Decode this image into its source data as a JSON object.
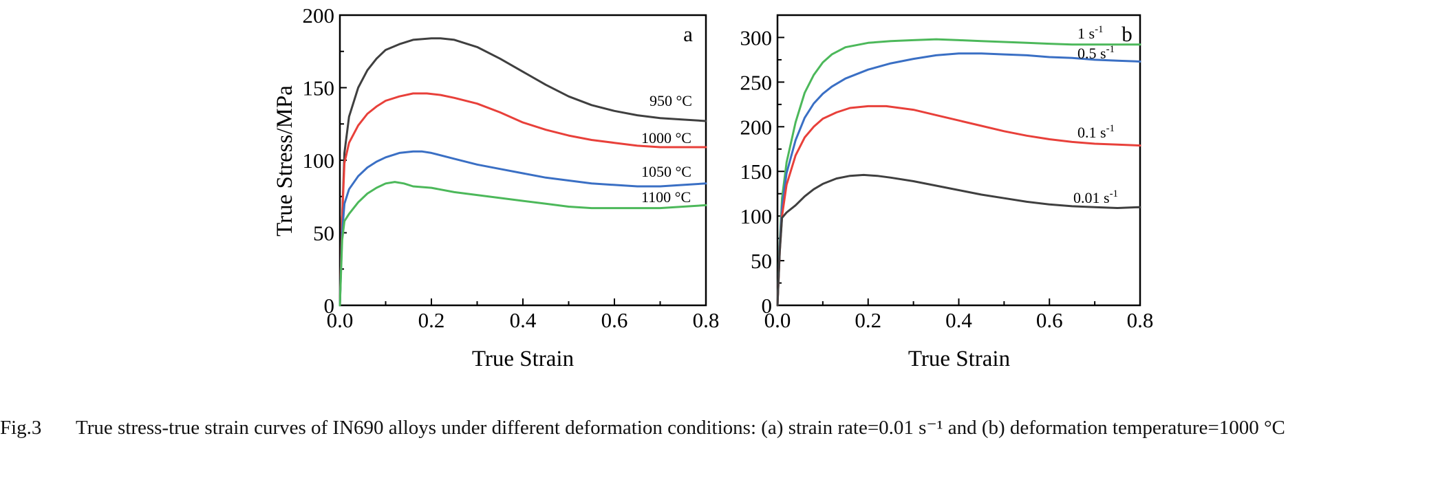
{
  "chart_data": [
    {
      "type": "line",
      "panel": "a",
      "xlabel": "True Strain",
      "ylabel": "True Stress/MPa",
      "xlim": [
        0.0,
        0.8
      ],
      "ylim": [
        0,
        200
      ],
      "xticks": [
        "0.0",
        "0.2",
        "0.4",
        "0.6",
        "0.8"
      ],
      "yticks": [
        "0",
        "50",
        "100",
        "150",
        "200"
      ],
      "grid": false,
      "series": [
        {
          "name": "950 °C",
          "color": "#3f3f3f",
          "x": [
            0,
            0.005,
            0.01,
            0.02,
            0.04,
            0.06,
            0.08,
            0.1,
            0.13,
            0.16,
            0.2,
            0.22,
            0.25,
            0.3,
            0.35,
            0.4,
            0.45,
            0.5,
            0.55,
            0.6,
            0.65,
            0.7,
            0.75,
            0.8
          ],
          "y": [
            0,
            60,
            105,
            130,
            150,
            162,
            170,
            176,
            180,
            183,
            184,
            184,
            183,
            178,
            170,
            161,
            152,
            144,
            138,
            134,
            131,
            129,
            128,
            127
          ]
        },
        {
          "name": "1000 °C",
          "color": "#e8403a",
          "x": [
            0,
            0.005,
            0.01,
            0.02,
            0.04,
            0.06,
            0.08,
            0.1,
            0.13,
            0.16,
            0.19,
            0.22,
            0.25,
            0.3,
            0.35,
            0.4,
            0.45,
            0.5,
            0.55,
            0.6,
            0.65,
            0.7,
            0.75,
            0.8
          ],
          "y": [
            0,
            60,
            98,
            112,
            124,
            132,
            137,
            141,
            144,
            146,
            146,
            145,
            143,
            139,
            133,
            126,
            121,
            117,
            114,
            112,
            110,
            109,
            109,
            109
          ]
        },
        {
          "name": "1050 °C",
          "color": "#3a6fc4",
          "x": [
            0,
            0.005,
            0.01,
            0.02,
            0.04,
            0.06,
            0.08,
            0.1,
            0.13,
            0.16,
            0.18,
            0.2,
            0.25,
            0.3,
            0.35,
            0.4,
            0.45,
            0.5,
            0.55,
            0.6,
            0.65,
            0.7,
            0.75,
            0.8
          ],
          "y": [
            0,
            50,
            70,
            80,
            89,
            95,
            99,
            102,
            105,
            106,
            106,
            105,
            101,
            97,
            94,
            91,
            88,
            86,
            84,
            83,
            82,
            82,
            83,
            84
          ]
        },
        {
          "name": "1100 °C",
          "color": "#4cb85a",
          "x": [
            0,
            0.005,
            0.01,
            0.02,
            0.04,
            0.06,
            0.08,
            0.1,
            0.12,
            0.14,
            0.16,
            0.2,
            0.25,
            0.3,
            0.35,
            0.4,
            0.45,
            0.5,
            0.55,
            0.6,
            0.65,
            0.7,
            0.75,
            0.8
          ],
          "y": [
            0,
            45,
            58,
            63,
            71,
            77,
            81,
            84,
            85,
            84,
            82,
            81,
            78,
            76,
            74,
            72,
            70,
            68,
            67,
            67,
            67,
            67,
            68,
            69
          ]
        }
      ],
      "curve_labels": [
        "950 °C",
        "1000 °C",
        "1050 °C",
        "1100 °C"
      ]
    },
    {
      "type": "line",
      "panel": "b",
      "xlabel": "True Strain",
      "ylabel": "",
      "xlim": [
        0.0,
        0.8
      ],
      "ylim": [
        0,
        325
      ],
      "xticks": [
        "0.0",
        "0.2",
        "0.4",
        "0.6",
        "0.8"
      ],
      "yticks": [
        "0",
        "50",
        "100",
        "150",
        "200",
        "250",
        "300"
      ],
      "grid": false,
      "series": [
        {
          "name": "1 s-1",
          "color": "#4cb85a",
          "x": [
            0,
            0.005,
            0.01,
            0.02,
            0.04,
            0.06,
            0.08,
            0.1,
            0.12,
            0.15,
            0.2,
            0.25,
            0.3,
            0.35,
            0.4,
            0.45,
            0.5,
            0.55,
            0.6,
            0.65,
            0.7,
            0.75,
            0.8
          ],
          "y": [
            0,
            70,
            120,
            160,
            205,
            238,
            258,
            272,
            281,
            289,
            294,
            296,
            297,
            298,
            297,
            296,
            295,
            294,
            293,
            292,
            292,
            292,
            292
          ]
        },
        {
          "name": "0.5 s-1",
          "color": "#3a6fc4",
          "x": [
            0,
            0.005,
            0.01,
            0.02,
            0.04,
            0.06,
            0.08,
            0.1,
            0.12,
            0.15,
            0.2,
            0.25,
            0.3,
            0.35,
            0.4,
            0.45,
            0.5,
            0.55,
            0.6,
            0.65,
            0.7,
            0.75,
            0.8
          ],
          "y": [
            0,
            65,
            110,
            148,
            185,
            210,
            226,
            237,
            245,
            254,
            264,
            271,
            276,
            280,
            282,
            282,
            281,
            280,
            278,
            277,
            275,
            274,
            273
          ]
        },
        {
          "name": "0.1 s-1",
          "color": "#e8403a",
          "x": [
            0,
            0.005,
            0.01,
            0.02,
            0.04,
            0.06,
            0.08,
            0.1,
            0.13,
            0.16,
            0.2,
            0.24,
            0.3,
            0.35,
            0.4,
            0.45,
            0.5,
            0.55,
            0.6,
            0.65,
            0.7,
            0.75,
            0.8
          ],
          "y": [
            0,
            60,
            100,
            135,
            168,
            188,
            200,
            209,
            216,
            221,
            223,
            223,
            219,
            213,
            207,
            201,
            195,
            190,
            186,
            183,
            181,
            180,
            179
          ]
        },
        {
          "name": "0.01 s-1",
          "color": "#3f3f3f",
          "x": [
            0,
            0.005,
            0.01,
            0.02,
            0.04,
            0.06,
            0.08,
            0.1,
            0.13,
            0.16,
            0.19,
            0.22,
            0.25,
            0.3,
            0.35,
            0.4,
            0.45,
            0.5,
            0.55,
            0.6,
            0.65,
            0.7,
            0.75,
            0.8
          ],
          "y": [
            0,
            60,
            98,
            104,
            112,
            122,
            130,
            136,
            142,
            145,
            146,
            145,
            143,
            139,
            134,
            129,
            124,
            120,
            116,
            113,
            111,
            110,
            109,
            110
          ]
        }
      ],
      "curve_labels": [
        {
          "base": "1 s",
          "sup": "-1"
        },
        {
          "base": "0.5 s",
          "sup": "-1"
        },
        {
          "base": "0.1 s",
          "sup": "-1"
        },
        {
          "base": "0.01 s",
          "sup": "-1"
        }
      ]
    }
  ],
  "caption": {
    "label": "Fig.3",
    "text": "True stress-true strain curves of IN690 alloys under different deformation conditions: (a) strain rate=0.01 s⁻¹ and (b) deformation temperature=1000 °C"
  }
}
